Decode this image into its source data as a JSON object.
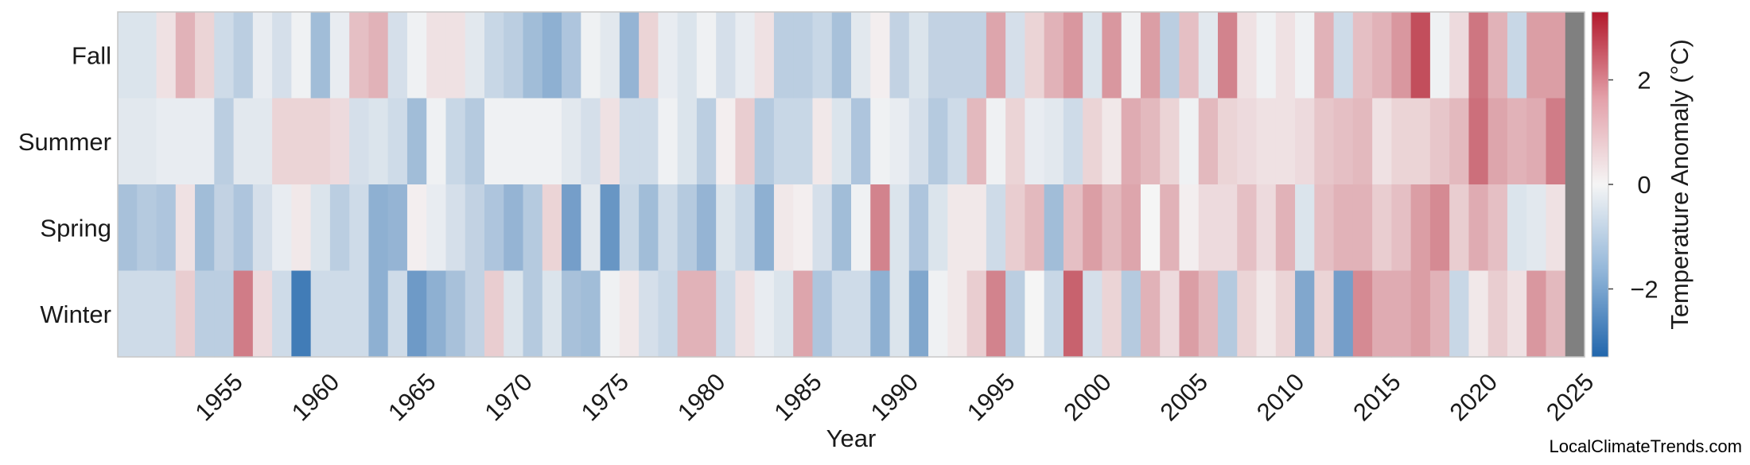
{
  "chart_data": {
    "type": "heatmap",
    "title": "",
    "xlabel": "Year",
    "colorbar_label": "Temperature Anomaly (°C)",
    "colorbar_ticks": [
      -2,
      0,
      2
    ],
    "colorbar_range": [
      -3.3,
      3.3
    ],
    "colormap": [
      "#2166ac",
      "#f5f5f5",
      "#b2182b"
    ],
    "missing_color": "#808080",
    "year_start": 1950,
    "year_end": 2025,
    "x_ticks": [
      "1955",
      "1960",
      "1965",
      "1970",
      "1975",
      "1980",
      "1985",
      "1990",
      "1995",
      "2000",
      "2005",
      "2010",
      "2015",
      "2020",
      "2025"
    ],
    "rows": [
      "Fall",
      "Summer",
      "Spring",
      "Winter"
    ],
    "values": {
      "Fall": [
        -0.4,
        -0.4,
        0.3,
        1.0,
        0.5,
        -0.6,
        -0.9,
        -0.2,
        -0.5,
        -0.1,
        -1.3,
        -0.2,
        0.8,
        1.0,
        -0.5,
        -0.1,
        0.3,
        0.3,
        -0.3,
        -0.7,
        -0.9,
        -1.3,
        -1.6,
        -1.1,
        -0.1,
        -0.3,
        -1.5,
        0.5,
        -0.2,
        -0.4,
        -0.1,
        -0.5,
        -0.2,
        0.3,
        -0.9,
        -0.9,
        -0.7,
        -1.2,
        -0.3,
        0.1,
        -0.8,
        -0.4,
        -0.8,
        -0.8,
        -0.8,
        1.2,
        -0.5,
        0.5,
        1.0,
        1.4,
        -0.4,
        1.4,
        -0.1,
        1.3,
        -0.9,
        0.8,
        -0.3,
        1.7,
        0.3,
        -0.1,
        0.3,
        -0.1,
        1.0,
        -0.6,
        0.8,
        1.0,
        1.4,
        2.5,
        -0.1,
        0.4,
        1.9,
        1.0,
        -0.7,
        1.3,
        1.3,
        null
      ],
      "Summer": [
        -0.3,
        -0.3,
        -0.2,
        -0.2,
        -0.2,
        -0.9,
        -0.3,
        -0.3,
        0.5,
        0.5,
        0.5,
        0.4,
        -0.5,
        -0.4,
        -0.6,
        -1.3,
        -0.1,
        -0.7,
        -1.0,
        -0.1,
        -0.1,
        -0.1,
        -0.1,
        -0.3,
        -0.5,
        0.3,
        -0.6,
        -0.6,
        -0.1,
        -0.4,
        -0.9,
        0.1,
        0.6,
        -1.0,
        -0.7,
        -0.7,
        0.2,
        -0.4,
        -1.1,
        -0.1,
        -0.2,
        -0.5,
        -1.0,
        -0.6,
        0.9,
        -0.1,
        0.5,
        -0.2,
        -0.3,
        -0.6,
        0.5,
        0.2,
        1.1,
        0.9,
        0.5,
        -0.1,
        0.9,
        0.5,
        0.4,
        0.3,
        0.3,
        0.4,
        0.7,
        0.8,
        0.9,
        0.3,
        0.5,
        0.5,
        0.7,
        0.9,
        2.0,
        1.2,
        1.0,
        1.1,
        1.8,
        null
      ],
      "Spring": [
        -1.2,
        -1.0,
        -1.1,
        0.3,
        -1.3,
        -0.8,
        -1.1,
        -0.5,
        -0.2,
        0.2,
        -0.4,
        -0.9,
        -0.6,
        -1.6,
        -1.5,
        0.1,
        -0.2,
        -0.5,
        -0.8,
        -1.1,
        -1.5,
        -1.0,
        0.5,
        -2.0,
        -0.3,
        -2.2,
        -0.7,
        -1.3,
        -0.6,
        -1.0,
        -1.5,
        -0.4,
        -0.7,
        -1.6,
        0.2,
        0.1,
        -0.5,
        -1.3,
        -0.1,
        1.7,
        -0.4,
        -1.1,
        -0.4,
        0.2,
        0.2,
        -0.6,
        0.6,
        0.9,
        -1.3,
        0.8,
        1.3,
        0.9,
        1.2,
        0.0,
        1.0,
        0.1,
        0.4,
        0.4,
        0.8,
        0.4,
        1.0,
        -0.4,
        0.8,
        1.0,
        1.0,
        0.6,
        0.8,
        1.3,
        1.6,
        0.6,
        1.1,
        0.8,
        -0.4,
        -0.3,
        0.3,
        null
      ],
      "Winter": [
        -0.6,
        -0.6,
        -0.6,
        0.6,
        -0.9,
        -0.9,
        1.8,
        0.4,
        -0.6,
        -2.8,
        -0.6,
        -0.6,
        -0.6,
        -1.6,
        -0.6,
        -2.1,
        -1.6,
        -1.2,
        -0.8,
        0.6,
        -0.4,
        -1.0,
        -0.4,
        -1.2,
        -1.3,
        -0.1,
        0.2,
        -0.5,
        -0.7,
        1.0,
        1.0,
        -0.6,
        0.3,
        -0.2,
        -0.4,
        1.2,
        -1.1,
        -0.6,
        -0.6,
        -1.6,
        -0.4,
        -1.8,
        -0.1,
        0.2,
        0.6,
        1.7,
        -0.9,
        0.0,
        -0.7,
        2.2,
        -0.5,
        0.5,
        -1.0,
        1.0,
        0.4,
        1.3,
        0.9,
        -1.0,
        0.5,
        0.2,
        0.5,
        -1.8,
        0.5,
        -2.0,
        1.6,
        1.1,
        1.1,
        1.3,
        1.0,
        -0.7,
        0.2,
        0.6,
        0.3,
        1.4,
        0.9,
        null
      ]
    }
  },
  "credit": "LocalClimateTrends.com"
}
